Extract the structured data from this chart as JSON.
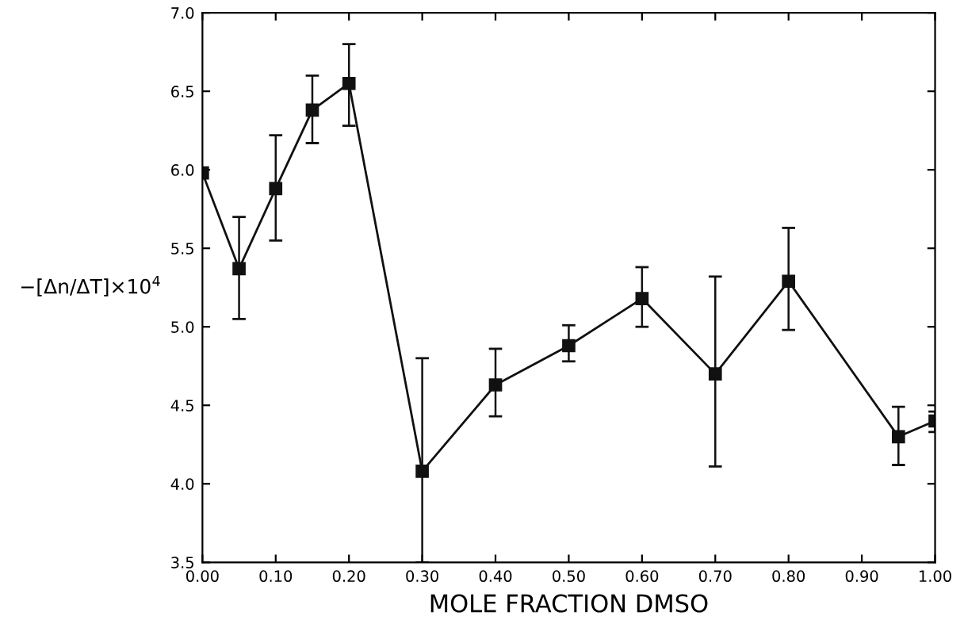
{
  "chart_data": {
    "type": "line",
    "xlabel": "MOLE FRACTION DMSO",
    "ylabel": "−[Δn/ΔT]×10$^{4}$",
    "x": [
      0.0,
      0.05,
      0.1,
      0.15,
      0.2,
      0.3,
      0.4,
      0.5,
      0.6,
      0.7,
      0.8,
      0.95,
      1.0
    ],
    "series": [
      {
        "color": "#111111",
        "values": [
          5.98,
          5.37,
          5.88,
          6.38,
          6.55,
          4.08,
          4.63,
          4.88,
          5.18,
          4.7,
          5.29,
          4.3,
          4.4
        ],
        "errors": [
          null,
          [
            5.05,
            5.7
          ],
          [
            5.55,
            6.22
          ],
          [
            6.17,
            6.6
          ],
          [
            6.28,
            6.8
          ],
          [
            3.5,
            4.8
          ],
          [
            4.43,
            4.86
          ],
          [
            4.78,
            5.01
          ],
          [
            5.0,
            5.38
          ],
          [
            4.11,
            5.32
          ],
          [
            4.98,
            5.63
          ],
          [
            4.12,
            4.49
          ],
          [
            4.33,
            4.46
          ]
        ]
      }
    ],
    "marker": "square",
    "line_style": "solid",
    "grid": false,
    "xlim": [
      0,
      1.0
    ],
    "xticks": [
      {
        "value": 0,
        "label": "0.00"
      },
      {
        "value": 0.1,
        "label": "0.10"
      },
      {
        "value": 0.2,
        "label": "0.20"
      },
      {
        "value": 0.3,
        "label": "0.30"
      },
      {
        "value": 0.4,
        "label": "0.40"
      },
      {
        "value": 0.5,
        "label": "0.50"
      },
      {
        "value": 0.6,
        "label": "0.60"
      },
      {
        "value": 0.7,
        "label": "0.70"
      },
      {
        "value": 0.8,
        "label": "0.80"
      },
      {
        "value": 0.9,
        "label": "0.90"
      },
      {
        "value": 1.0,
        "label": "1.00"
      }
    ],
    "ylim": [
      3.5,
      7.0
    ],
    "yticks": [
      3.5,
      {
        "value": 4,
        "label": "4.0"
      },
      4.5,
      {
        "value": 5,
        "label": "5.0"
      },
      5.5,
      {
        "value": 6,
        "label": "6.0"
      },
      6.5,
      {
        "value": 7,
        "label": "7.0"
      }
    ]
  }
}
